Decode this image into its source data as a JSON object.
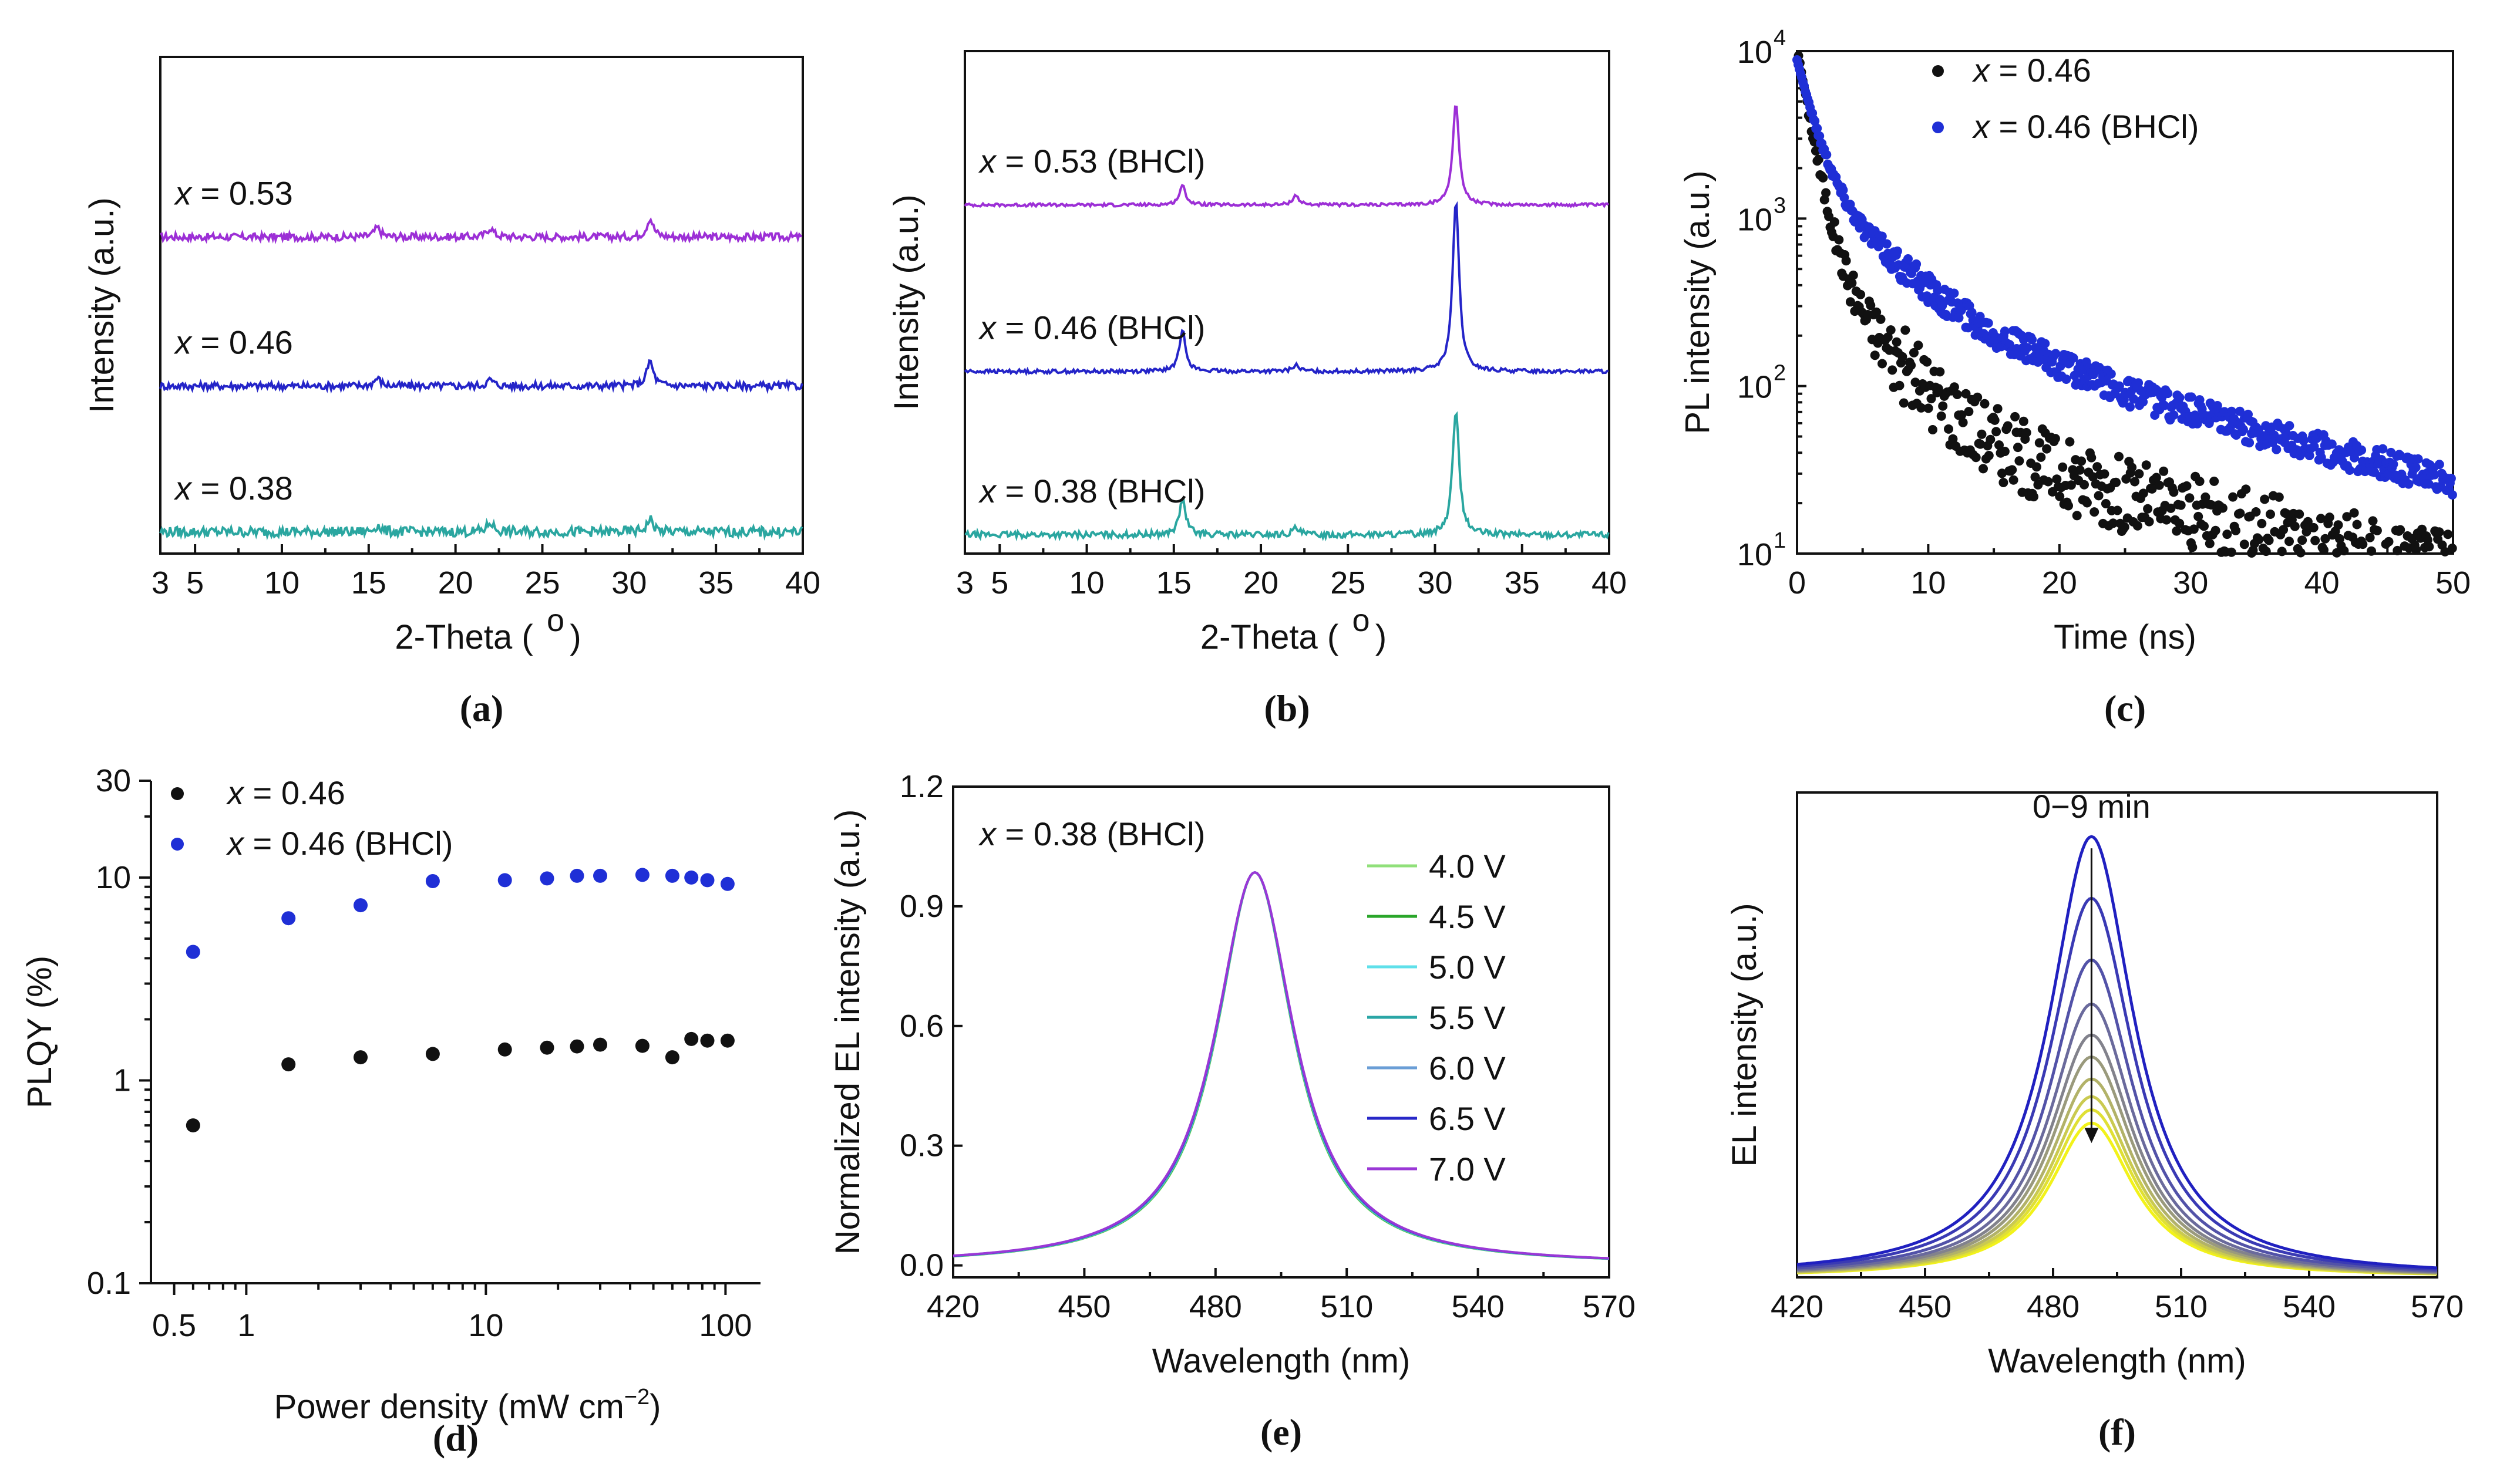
{
  "chart_data": [
    {
      "id": "a",
      "type": "line",
      "panel_label": "(a)",
      "xlabel": "2-Theta (o)",
      "ylabel": "Intensity (a.u.)",
      "xlim": [
        3,
        40
      ],
      "ylim": [
        0,
        1.6
      ],
      "xticks": [
        3,
        5,
        10,
        15,
        20,
        25,
        30,
        35,
        40
      ],
      "peaks": [
        15.5,
        22,
        31.2
      ],
      "series": [
        {
          "name": "x = 0.53",
          "label_italic": "x",
          "label_rest": " = 0.53",
          "color": "#9c2fd6",
          "offset": 1.02,
          "peak_heights": [
            0.03,
            0.03,
            0.06
          ],
          "noise": 0.012
        },
        {
          "name": "x = 0.46",
          "label_italic": "x",
          "label_rest": " = 0.46",
          "color": "#2424c8",
          "offset": 0.54,
          "peak_heights": [
            0.025,
            0.02,
            0.08
          ],
          "noise": 0.012
        },
        {
          "name": "x = 0.38",
          "label_italic": "x",
          "label_rest": " = 0.38",
          "color": "#2aa6a0",
          "offset": 0.07,
          "peak_heights": [
            0.02,
            0.03,
            0.04
          ],
          "noise": 0.016
        }
      ]
    },
    {
      "id": "b",
      "type": "line",
      "panel_label": "(b)",
      "xlabel": "2-Theta (o)",
      "ylabel": "Intensity (a.u.)",
      "xlim": [
        3,
        40
      ],
      "ylim": [
        0,
        1.6
      ],
      "xticks": [
        3,
        5,
        10,
        15,
        20,
        25,
        30,
        35,
        40
      ],
      "peaks": [
        15.5,
        22,
        31.2
      ],
      "series": [
        {
          "name": "x = 0.53 (BHCl)",
          "label_italic": "x",
          "label_rest": " = 0.53 (BHCl)",
          "color": "#9c2fd6",
          "offset": 1.11,
          "peak_heights": [
            0.06,
            0.03,
            0.32
          ],
          "noise": 0.005
        },
        {
          "name": "x = 0.46 (BHCl)",
          "label_italic": "x",
          "label_rest": " = 0.46 (BHCl)",
          "color": "#2424c8",
          "offset": 0.58,
          "peak_heights": [
            0.13,
            0.02,
            0.54
          ],
          "noise": 0.006
        },
        {
          "name": "x = 0.38 (BHCl)",
          "label_italic": "x",
          "label_rest": " = 0.38 (BHCl)",
          "color": "#2aa6a0",
          "offset": 0.06,
          "peak_heights": [
            0.11,
            0.02,
            0.4
          ],
          "noise": 0.01
        }
      ]
    },
    {
      "id": "c",
      "type": "scatter",
      "panel_label": "(c)",
      "xlabel": "Time (ns)",
      "ylabel": "PL intensity (a.u.)",
      "xlim": [
        0,
        50
      ],
      "ylim": [
        10,
        10000
      ],
      "yscale": "log",
      "xticks": [
        0,
        10,
        20,
        30,
        40,
        50
      ],
      "yticks": [
        {
          "base": "10",
          "exp": "1"
        },
        {
          "base": "10",
          "exp": "2"
        },
        {
          "base": "10",
          "exp": "3"
        },
        {
          "base": "10",
          "exp": "4"
        }
      ],
      "series": [
        {
          "name": "x = 0.46",
          "label_italic": "x",
          "label_rest": " = 0.46",
          "color": "#111111",
          "decay": [
            {
              "a": 9800,
              "tau": 0.9
            },
            {
              "a": 700,
              "tau": 3.8
            },
            {
              "a": 70,
              "tau": 18
            }
          ],
          "floor": 4
        },
        {
          "name": "x = 0.46 (BHCl)",
          "label_italic": "x",
          "label_rest": " = 0.46 (BHCl)",
          "color": "#1f2fd6",
          "decay": [
            {
              "a": 7000,
              "tau": 1.2
            },
            {
              "a": 1600,
              "tau": 5.0
            },
            {
              "a": 260,
              "tau": 22
            }
          ],
          "floor": 0
        }
      ]
    },
    {
      "id": "d",
      "type": "scatter",
      "panel_label": "(d)",
      "xlabel": "Power density (mW cm",
      "xlabel_sup": "−2",
      "xlabel_end": ")",
      "ylabel": "PLQY (%)",
      "xlim": [
        0.4,
        140
      ],
      "ylim": [
        0.1,
        30
      ],
      "xscale": "log",
      "yscale": "log",
      "xticks": [
        "0.5",
        "1",
        "10",
        "100"
      ],
      "yticks": [
        "0.1",
        "1",
        "10",
        "30"
      ],
      "series": [
        {
          "name": "x = 0.46",
          "label_italic": "x",
          "label_rest": " = 0.46",
          "color": "#111111",
          "x": [
            0.6,
            1.5,
            3,
            6,
            12,
            18,
            24,
            30,
            45,
            60,
            72,
            84,
            102
          ],
          "y": [
            0.6,
            1.2,
            1.3,
            1.35,
            1.42,
            1.45,
            1.47,
            1.5,
            1.48,
            1.3,
            1.6,
            1.57,
            1.57
          ]
        },
        {
          "name": "x = 0.46 (BHCl)",
          "label_italic": "x",
          "label_rest": " = 0.46 (BHCl)",
          "color": "#1f2fd6",
          "x": [
            0.6,
            1.5,
            3,
            6,
            12,
            18,
            24,
            30,
            45,
            60,
            72,
            84,
            102
          ],
          "y": [
            4.3,
            6.3,
            7.3,
            9.6,
            9.7,
            9.9,
            10.2,
            10.2,
            10.3,
            10.2,
            10.0,
            9.7,
            9.3
          ]
        }
      ]
    },
    {
      "id": "e",
      "type": "line",
      "panel_label": "(e)",
      "title": "x = 0.38 (BHCl)",
      "title_italic": "x",
      "title_rest": " = 0.38 (BHCl)",
      "xlabel": "Wavelength (nm)",
      "ylabel": "Normalized EL intensity (a.u.)",
      "xlim": [
        420,
        570
      ],
      "ylim": [
        -0.03,
        1.2
      ],
      "xticks": [
        420,
        450,
        480,
        510,
        540,
        570
      ],
      "yticks": [
        "0.0",
        "0.3",
        "0.6",
        "0.9",
        "1.2"
      ],
      "peak_nm": 489,
      "fwhm_nm": 22,
      "series": [
        {
          "name": "4.0 V",
          "color": "#90e07a"
        },
        {
          "name": "4.5 V",
          "color": "#2aa62a"
        },
        {
          "name": "5.0 V",
          "color": "#5fe0ea"
        },
        {
          "name": "5.5 V",
          "color": "#2aa6a6"
        },
        {
          "name": "6.0 V",
          "color": "#6a9ed6"
        },
        {
          "name": "6.5 V",
          "color": "#2828c8"
        },
        {
          "name": "7.0 V",
          "color": "#9a38d6"
        }
      ]
    },
    {
      "id": "f",
      "type": "line",
      "panel_label": "(f)",
      "annotation": "0−9 min",
      "xlabel": "Wavelength (nm)",
      "ylabel": "EL intensity (a.u.)",
      "xlim": [
        420,
        570
      ],
      "ylim": [
        0,
        1.1
      ],
      "xticks": [
        420,
        450,
        480,
        510,
        540,
        570
      ],
      "peak_nm": 489,
      "series": [
        {
          "name": "0 min",
          "value": 1.0,
          "color": "#2020c0"
        },
        {
          "name": "1 min",
          "value": 0.86,
          "color": "#3a3ab4"
        },
        {
          "name": "2 min",
          "value": 0.72,
          "color": "#5252a8"
        },
        {
          "name": "3 min",
          "value": 0.62,
          "color": "#6a6a9c"
        },
        {
          "name": "4 min",
          "value": 0.55,
          "color": "#82828c"
        },
        {
          "name": "5 min",
          "value": 0.5,
          "color": "#9a9a7c"
        },
        {
          "name": "6 min",
          "value": 0.45,
          "color": "#b2b268"
        },
        {
          "name": "7 min",
          "value": 0.41,
          "color": "#caca50"
        },
        {
          "name": "8 min",
          "value": 0.38,
          "color": "#e0e034"
        },
        {
          "name": "9 min",
          "value": 0.35,
          "color": "#f2f21a"
        }
      ]
    }
  ]
}
